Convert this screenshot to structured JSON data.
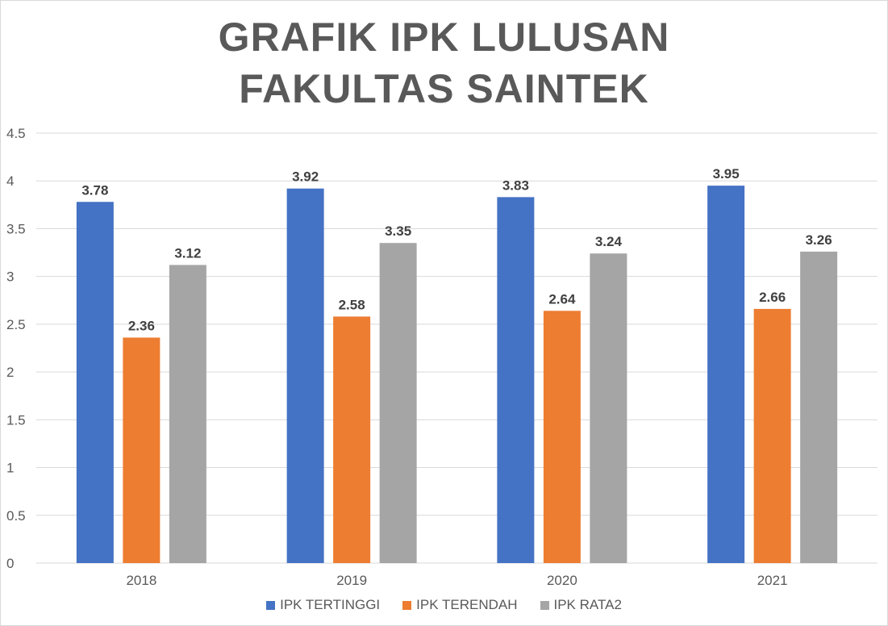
{
  "chart_data": {
    "type": "bar",
    "title_lines": [
      "GRAFIK IPK LULUSAN",
      "FAKULTAS SAINTEK"
    ],
    "categories": [
      "2018",
      "2019",
      "2020",
      "2021"
    ],
    "series": [
      {
        "name": "IPK TERTINGGI",
        "color": "#4472c4",
        "values": [
          3.78,
          3.92,
          3.83,
          3.95
        ]
      },
      {
        "name": "IPK TERENDAH",
        "color": "#ed7d31",
        "values": [
          2.36,
          2.58,
          2.64,
          2.66
        ]
      },
      {
        "name": "IPK RATA2",
        "color": "#a5a5a5",
        "values": [
          3.12,
          3.35,
          3.24,
          3.26
        ]
      }
    ],
    "ylim": [
      0,
      4.5
    ],
    "yticks": [
      "0",
      "0.5",
      "1",
      "1.5",
      "2",
      "2.5",
      "3",
      "3.5",
      "4",
      "4.5"
    ],
    "grid": true,
    "legend_position": "bottom",
    "data_labels": true,
    "gridline_color": "#d9d9d9"
  }
}
